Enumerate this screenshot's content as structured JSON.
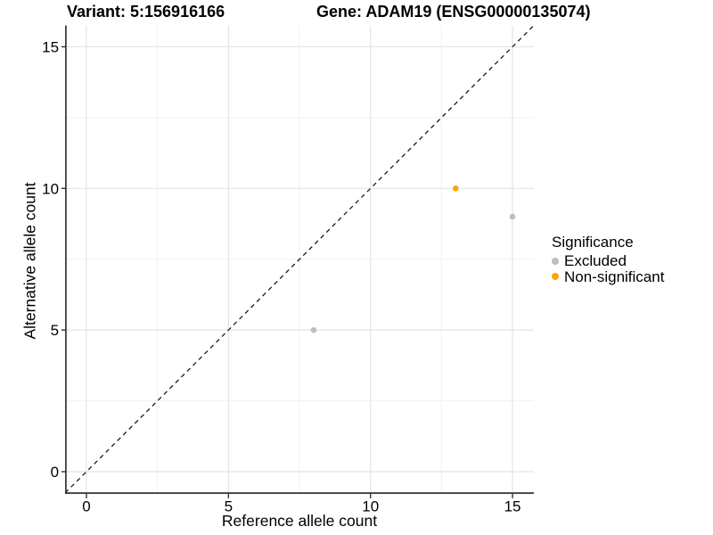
{
  "titles": {
    "left": "Variant: 5:156916166",
    "right": "Gene: ADAM19 (ENSG00000135074)"
  },
  "chart_data": {
    "type": "scatter",
    "xlabel": "Reference allele count",
    "ylabel": "Alternative allele count",
    "xlim": [
      -0.75,
      15.75
    ],
    "ylim": [
      -0.75,
      15.75
    ],
    "x_ticks": [
      0,
      5,
      10,
      15
    ],
    "y_ticks": [
      0,
      5,
      10,
      15
    ],
    "minor_ticks": [
      2.5,
      7.5,
      12.5
    ],
    "grid": true,
    "reference_line": {
      "type": "identity_y_equals_x",
      "style": "dashed",
      "color": "#1a1a1a"
    },
    "points": [
      {
        "x": 8,
        "y": 5,
        "significance": "Excluded"
      },
      {
        "x": 15,
        "y": 9,
        "significance": "Excluded"
      },
      {
        "x": 13,
        "y": 10,
        "significance": "Non-significant"
      }
    ],
    "legend": {
      "title": "Significance",
      "position": "right",
      "entries": [
        {
          "label": "Excluded",
          "color": "#BEBEBE"
        },
        {
          "label": "Non-significant",
          "color": "#FFA500"
        }
      ]
    },
    "style": {
      "point_radius": 3.3,
      "grid_major_color": "#E4E4E4",
      "grid_minor_color": "#F0F0F0",
      "axis_color": "#333333",
      "tick_label_color": "#000000",
      "background": "#FFFFFF"
    }
  }
}
